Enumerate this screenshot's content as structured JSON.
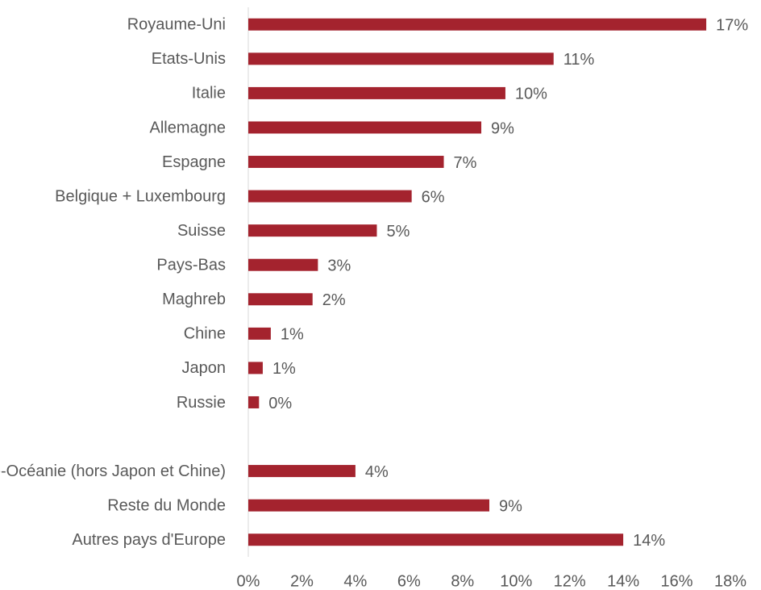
{
  "chart_data": {
    "type": "hbar",
    "categories": [
      "Royaume-Uni",
      "Etats-Unis",
      "Italie",
      "Allemagne",
      "Espagne",
      "Belgique + Luxembourg",
      "Suisse",
      "Pays-Bas",
      "Maghreb",
      "Chine",
      "Japon",
      "Russie",
      null,
      "Asie-Océanie (hors Japon et Chine)",
      "Reste du Monde",
      "Autres pays d'Europe"
    ],
    "values": [
      17.1,
      11.4,
      9.6,
      8.7,
      7.3,
      6.1,
      4.8,
      2.6,
      2.4,
      0.84,
      0.54,
      0.4,
      null,
      4.0,
      9.0,
      14.0
    ],
    "value_labels": [
      "17%",
      "11%",
      "10%",
      "9%",
      "7%",
      "6%",
      "5%",
      "3%",
      "2%",
      "1%",
      "1%",
      "0%",
      null,
      "4%",
      "9%",
      "14%"
    ],
    "color": "#a4232e",
    "xlim": [
      0,
      18
    ],
    "xticks": [
      {
        "value": 0,
        "label": "0%"
      },
      {
        "value": 2,
        "label": "2%"
      },
      {
        "value": 4,
        "label": "4%"
      },
      {
        "value": 6,
        "label": "6%"
      },
      {
        "value": 8,
        "label": "8%"
      },
      {
        "value": 10,
        "label": "10%"
      },
      {
        "value": 12,
        "label": "12%"
      },
      {
        "value": 14,
        "label": "14%"
      },
      {
        "value": 16,
        "label": "16%"
      },
      {
        "value": 18,
        "label": "18%"
      }
    ],
    "grid": false
  }
}
